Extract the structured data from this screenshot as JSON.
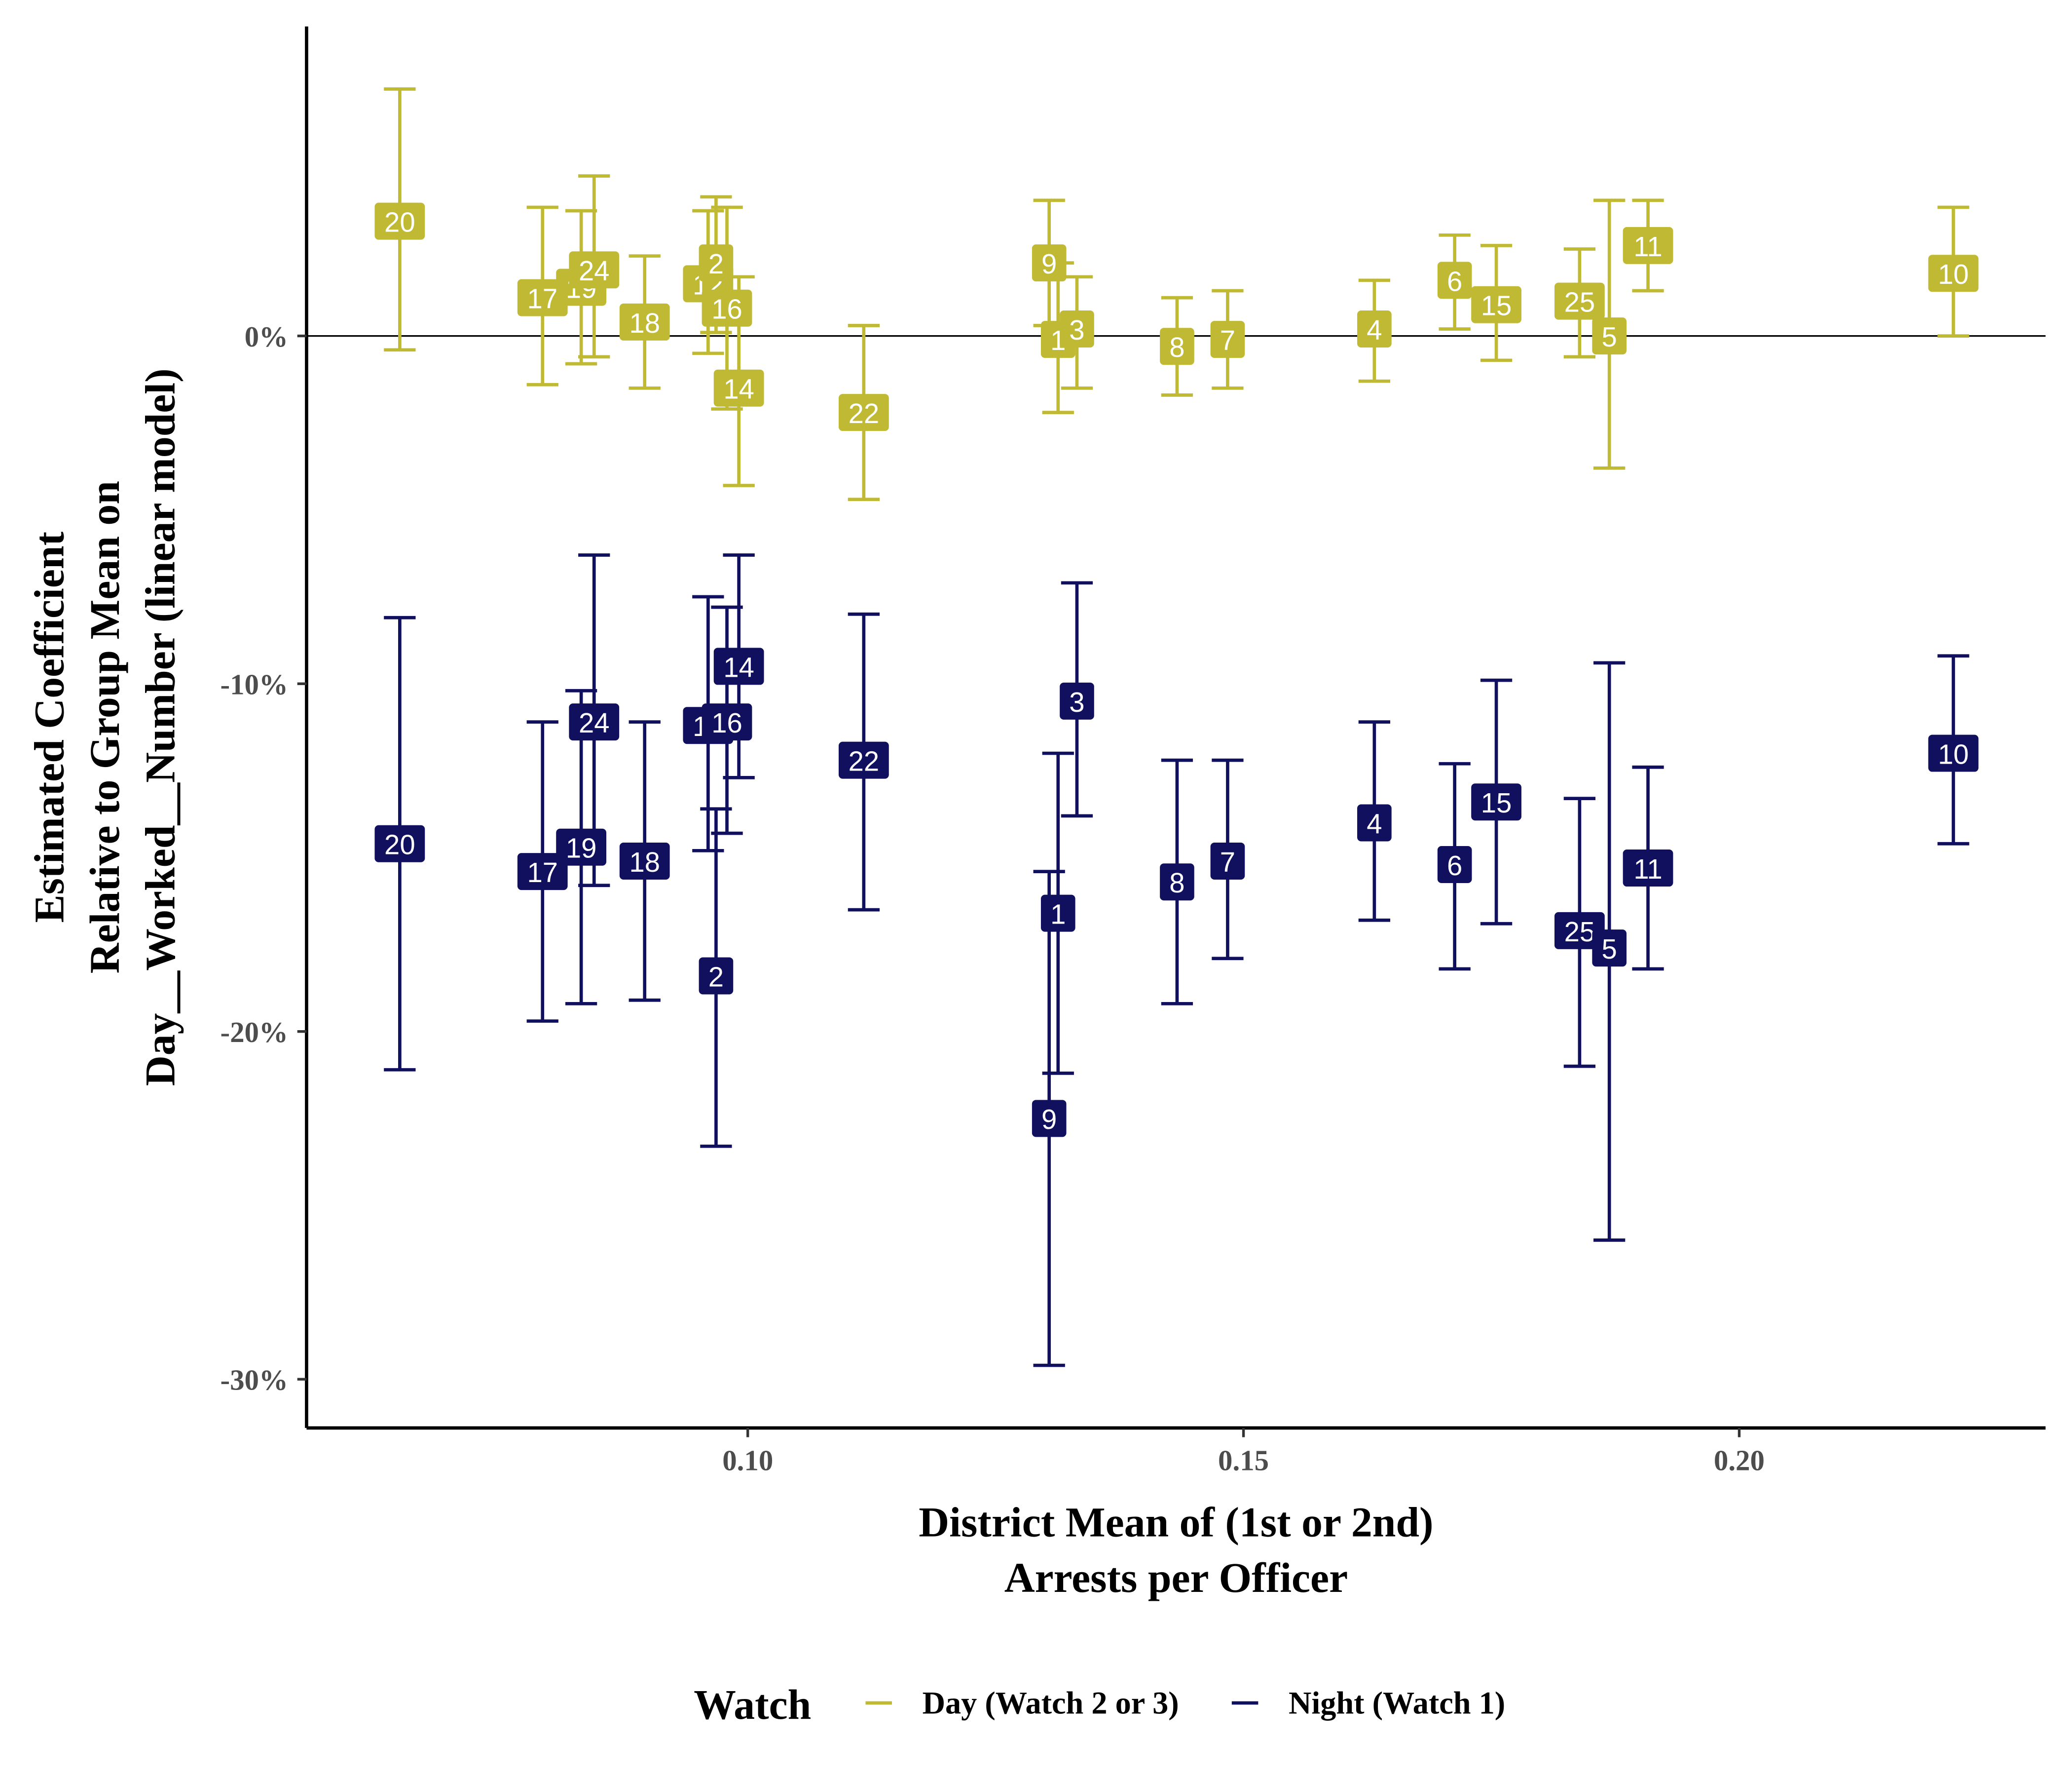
{
  "chart_data": {
    "type": "errorbar",
    "x_label": [
      "District Mean of (1st or 2nd)",
      "Arrests per Officer"
    ],
    "y_label": [
      "Estimated Coefficient",
      "Relative to Group Mean on",
      "Day__Worked__Number (linear model)"
    ],
    "legend_title": "Watch",
    "legend_position": "bottom",
    "reference_line": 0,
    "xlim": [
      0.0555,
      0.2309
    ],
    "xticks": [
      {
        "value": 0.1,
        "label": "0.10"
      },
      {
        "value": 0.15,
        "label": "0.15"
      },
      {
        "value": 0.2,
        "label": "0.20"
      }
    ],
    "ylim": [
      -31.4,
      8.9
    ],
    "yticks": [
      {
        "value": -30,
        "label": "-30%"
      },
      {
        "value": -20,
        "label": "-20%"
      },
      {
        "value": -10,
        "label": "-10%"
      },
      {
        "value": 0,
        "label": "0%"
      }
    ],
    "series": [
      {
        "name": "Day (Watch 2 or 3)",
        "color": "#bfb934",
        "labels": [
          "20",
          "17",
          "19",
          "24",
          "18",
          "12",
          "2",
          "16",
          "14",
          "22",
          "9",
          "1",
          "3",
          "8",
          "7",
          "4",
          "6",
          "15",
          "25",
          "5",
          "11",
          "10"
        ],
        "x": [
          0.0649,
          0.0793,
          0.0832,
          0.0845,
          0.0896,
          0.096,
          0.0968,
          0.0979,
          0.0991,
          0.1117,
          0.1304,
          0.1313,
          0.1332,
          0.1433,
          0.1484,
          0.1632,
          0.1713,
          0.1755,
          0.1839,
          0.1869,
          0.1908,
          0.2216
        ],
        "values": [
          3.3,
          1.1,
          1.4,
          1.9,
          0.4,
          1.5,
          2.1,
          0.8,
          -1.5,
          -2.2,
          2.1,
          -0.1,
          0.2,
          -0.3,
          -0.1,
          0.2,
          1.6,
          0.9,
          1.0,
          0.0,
          2.6,
          1.8
        ],
        "lower": [
          -0.4,
          -1.4,
          -0.8,
          -0.6,
          -1.5,
          -0.5,
          0.1,
          -2.1,
          -4.3,
          -4.7,
          0.3,
          -2.2,
          -1.5,
          -1.7,
          -1.5,
          -1.3,
          0.2,
          -0.7,
          -0.6,
          -3.8,
          1.3,
          0.0
        ],
        "upper": [
          7.1,
          3.7,
          3.6,
          4.6,
          2.3,
          3.6,
          4.0,
          3.7,
          1.7,
          0.3,
          3.9,
          2.1,
          1.7,
          1.1,
          1.3,
          1.6,
          2.9,
          2.6,
          2.5,
          3.9,
          3.9,
          3.7
        ]
      },
      {
        "name": "Night (Watch 1)",
        "color": "#10105f",
        "labels": [
          "20",
          "17",
          "19",
          "24",
          "18",
          "12",
          "2",
          "16",
          "14",
          "22",
          "9",
          "1",
          "3",
          "8",
          "7",
          "4",
          "6",
          "15",
          "25",
          "5",
          "11",
          "10"
        ],
        "x": [
          0.0649,
          0.0793,
          0.0832,
          0.0845,
          0.0896,
          0.096,
          0.0968,
          0.0979,
          0.0991,
          0.1117,
          0.1304,
          0.1313,
          0.1332,
          0.1433,
          0.1484,
          0.1632,
          0.1713,
          0.1755,
          0.1839,
          0.1869,
          0.1908,
          0.2216
        ],
        "values": [
          -14.6,
          -15.4,
          -14.7,
          -11.1,
          -15.1,
          -11.2,
          -18.4,
          -11.1,
          -9.5,
          -12.2,
          -22.5,
          -16.6,
          -10.5,
          -15.7,
          -15.1,
          -14.0,
          -15.2,
          -13.4,
          -17.1,
          -17.6,
          -15.3,
          -12.0
        ],
        "lower": [
          -21.1,
          -19.7,
          -19.2,
          -15.8,
          -19.1,
          -14.8,
          -23.3,
          -14.3,
          -12.7,
          -16.5,
          -29.6,
          -21.2,
          -13.8,
          -19.2,
          -17.9,
          -16.8,
          -18.2,
          -16.9,
          -21.0,
          -26.0,
          -18.2,
          -14.6
        ],
        "upper": [
          -8.1,
          -11.1,
          -10.2,
          -6.3,
          -11.1,
          -7.5,
          -13.6,
          -7.8,
          -6.3,
          -8.0,
          -15.4,
          -12.0,
          -7.1,
          -12.2,
          -12.2,
          -11.1,
          -12.3,
          -9.9,
          -13.3,
          -9.4,
          -12.4,
          -9.2
        ]
      }
    ]
  }
}
